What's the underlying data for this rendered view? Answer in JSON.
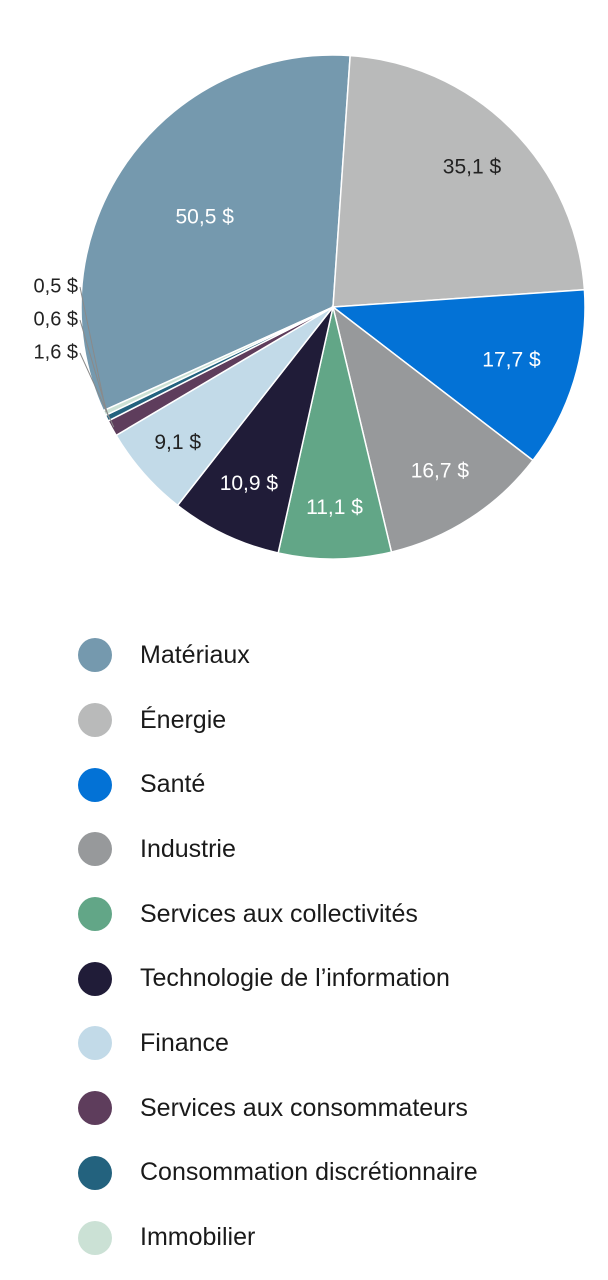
{
  "chart_data": {
    "type": "pie",
    "categories": [
      "Matériaux",
      "Énergie",
      "Santé",
      "Industrie",
      "Services aux collectivités",
      "Technologie de l’information",
      "Finance",
      "Services aux consommateurs",
      "Consommation discrétionnaire",
      "Immobilier"
    ],
    "values": [
      50.5,
      35.1,
      17.7,
      16.7,
      11.1,
      10.9,
      9.1,
      1.6,
      0.6,
      0.5
    ],
    "value_labels": [
      "50,5 $",
      "35,1 $",
      "17,7 $",
      "16,7 $",
      "11,1 $",
      "10,9 $",
      "9,1 $",
      "1,6 $",
      "0,6 $",
      "0,5 $"
    ],
    "colors": [
      "#7599ae",
      "#b9baba",
      "#0372d6",
      "#97999b",
      "#62a687",
      "#201c38",
      "#c2dae8",
      "#5e3d5c",
      "#23627e",
      "#cbe1d5"
    ],
    "label_colors": [
      "#ffffff",
      "#222222",
      "#ffffff",
      "#ffffff",
      "#ffffff",
      "#ffffff",
      "#222222",
      "#222222",
      "#222222",
      "#222222"
    ],
    "legend_position": "bottom"
  }
}
